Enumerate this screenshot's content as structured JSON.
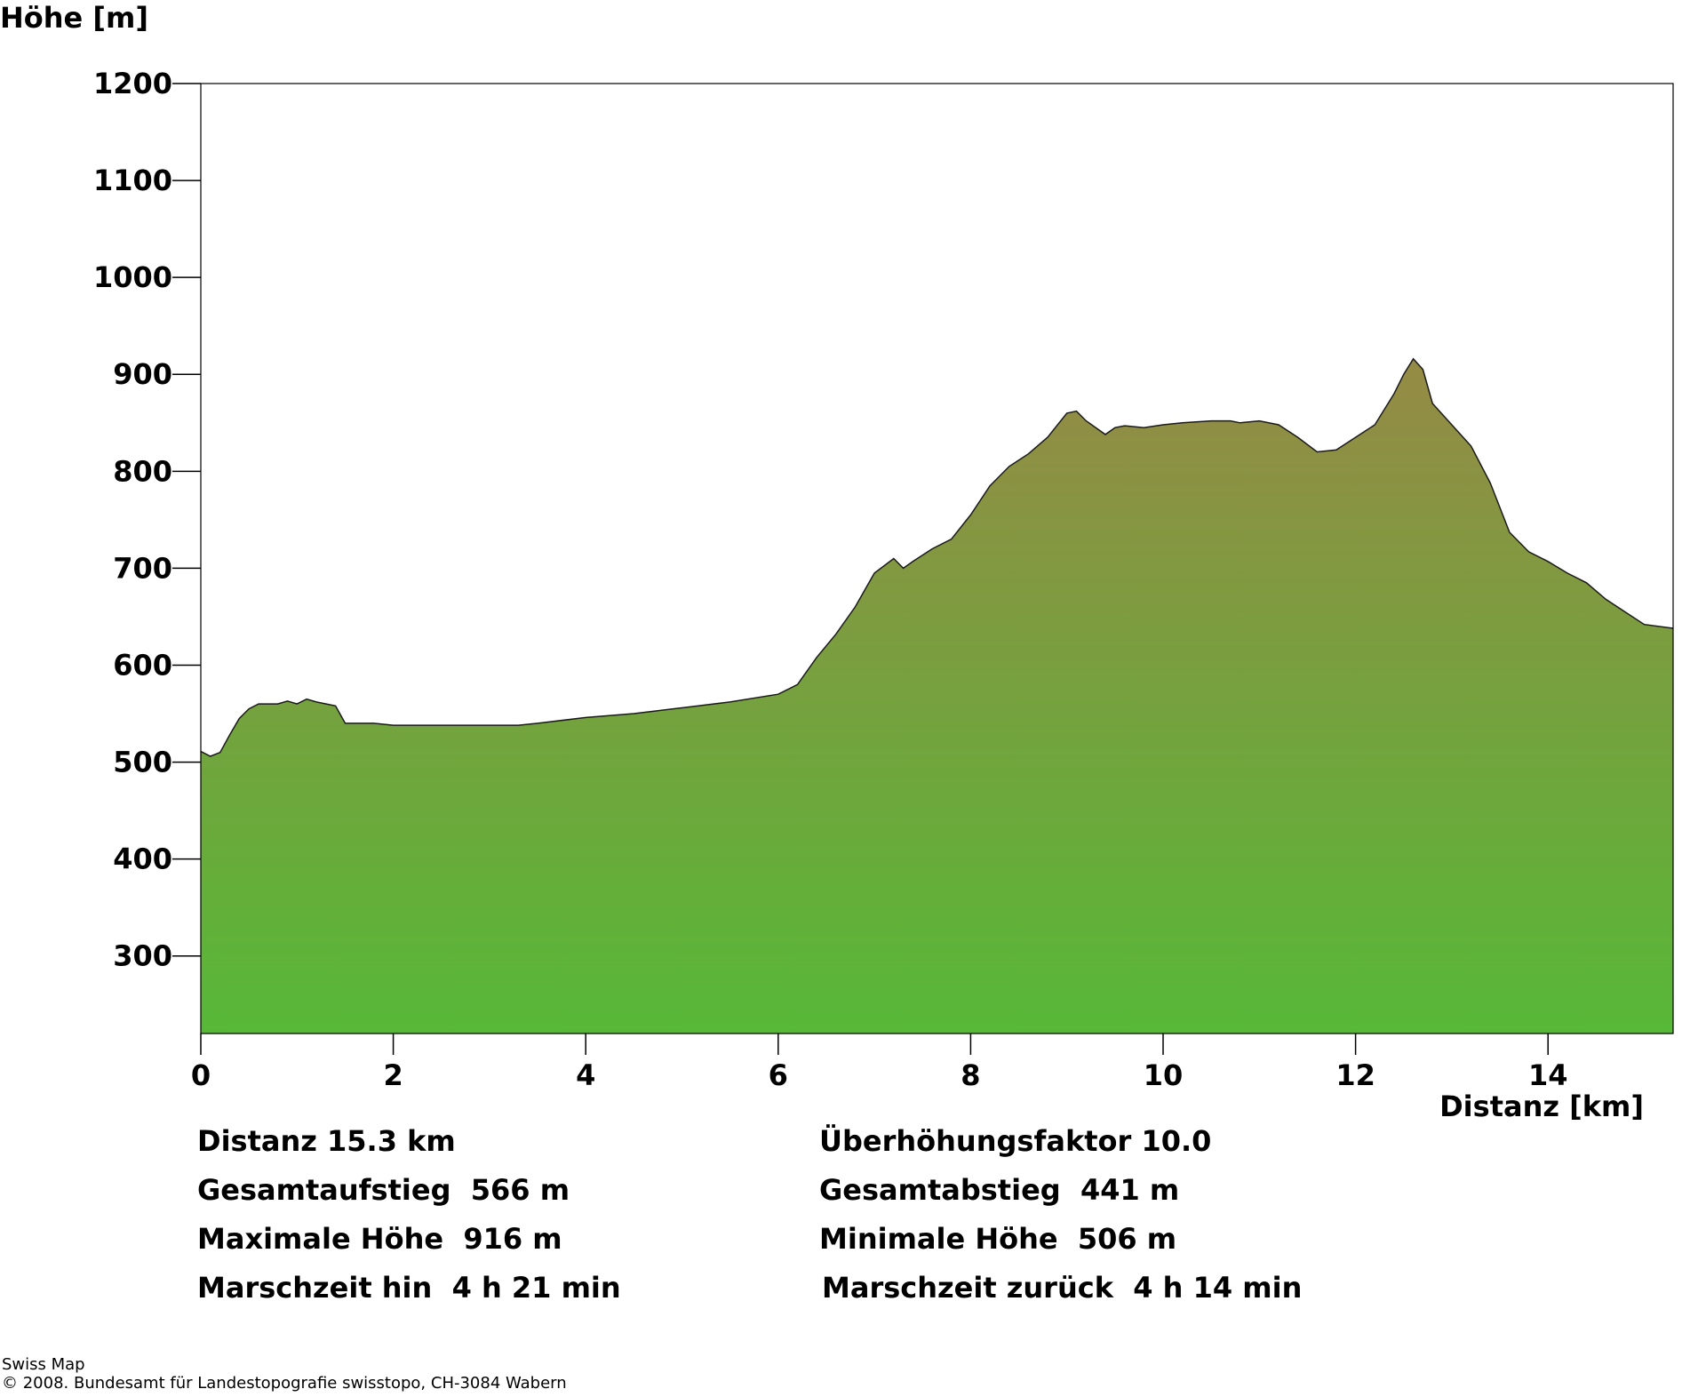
{
  "chart_data": {
    "type": "area",
    "ylabel": "Höhe [m]",
    "xlabel": "Distanz [km]",
    "xlim": [
      0,
      15.3
    ],
    "ylim": [
      220,
      1200
    ],
    "yticks": [
      300,
      400,
      500,
      600,
      700,
      800,
      900,
      1000,
      1100,
      1200
    ],
    "xticks": [
      0,
      2,
      4,
      6,
      8,
      10,
      12,
      14
    ],
    "grid": false,
    "fill_colors": {
      "top": "#958a45",
      "bottom": "#57b837"
    },
    "x": [
      0,
      0.1,
      0.2,
      0.3,
      0.4,
      0.5,
      0.6,
      0.8,
      0.9,
      1.0,
      1.1,
      1.2,
      1.4,
      1.5,
      1.6,
      1.8,
      2.0,
      2.5,
      3.0,
      3.3,
      3.5,
      4.0,
      4.5,
      5.0,
      5.5,
      6.0,
      6.1,
      6.2,
      6.4,
      6.6,
      6.8,
      7.0,
      7.2,
      7.3,
      7.4,
      7.6,
      7.8,
      8.0,
      8.2,
      8.4,
      8.6,
      8.8,
      9.0,
      9.1,
      9.2,
      9.4,
      9.5,
      9.6,
      9.8,
      10.0,
      10.2,
      10.5,
      10.7,
      10.8,
      11.0,
      11.2,
      11.4,
      11.6,
      11.8,
      12.0,
      12.2,
      12.4,
      12.5,
      12.6,
      12.7,
      12.8,
      13.0,
      13.2,
      13.4,
      13.6,
      13.8,
      14.0,
      14.2,
      14.4,
      14.6,
      14.8,
      15.0,
      15.3
    ],
    "y": [
      511,
      506,
      510,
      528,
      545,
      555,
      560,
      560,
      563,
      560,
      565,
      562,
      558,
      540,
      540,
      540,
      538,
      538,
      538,
      538,
      540,
      546,
      550,
      556,
      562,
      570,
      575,
      580,
      608,
      632,
      660,
      695,
      710,
      700,
      707,
      720,
      730,
      755,
      785,
      805,
      818,
      835,
      860,
      862,
      852,
      838,
      845,
      847,
      845,
      848,
      850,
      852,
      852,
      850,
      852,
      848,
      835,
      820,
      822,
      835,
      848,
      880,
      900,
      916,
      905,
      870,
      848,
      826,
      788,
      737,
      717,
      707,
      695,
      685,
      668,
      655,
      642,
      638
    ]
  },
  "stats": {
    "distance": "Distanz 15.3 km",
    "exaggeration": "Überhöhungsfaktor 10.0",
    "ascent": "Gesamtaufstieg  566 m",
    "descent": "Gesamtabstieg  441 m",
    "max_height": "Maximale Höhe  916 m",
    "min_height": "Minimale Höhe  506 m",
    "time_out": "Marschzeit hin  4 h 21 min",
    "time_back": "Marschzeit zurück  4 h 14 min"
  },
  "footer": {
    "line1": "Swiss Map",
    "line2": "© 2008. Bundesamt für Landestopografie swisstopo, CH-3084 Wabern"
  }
}
